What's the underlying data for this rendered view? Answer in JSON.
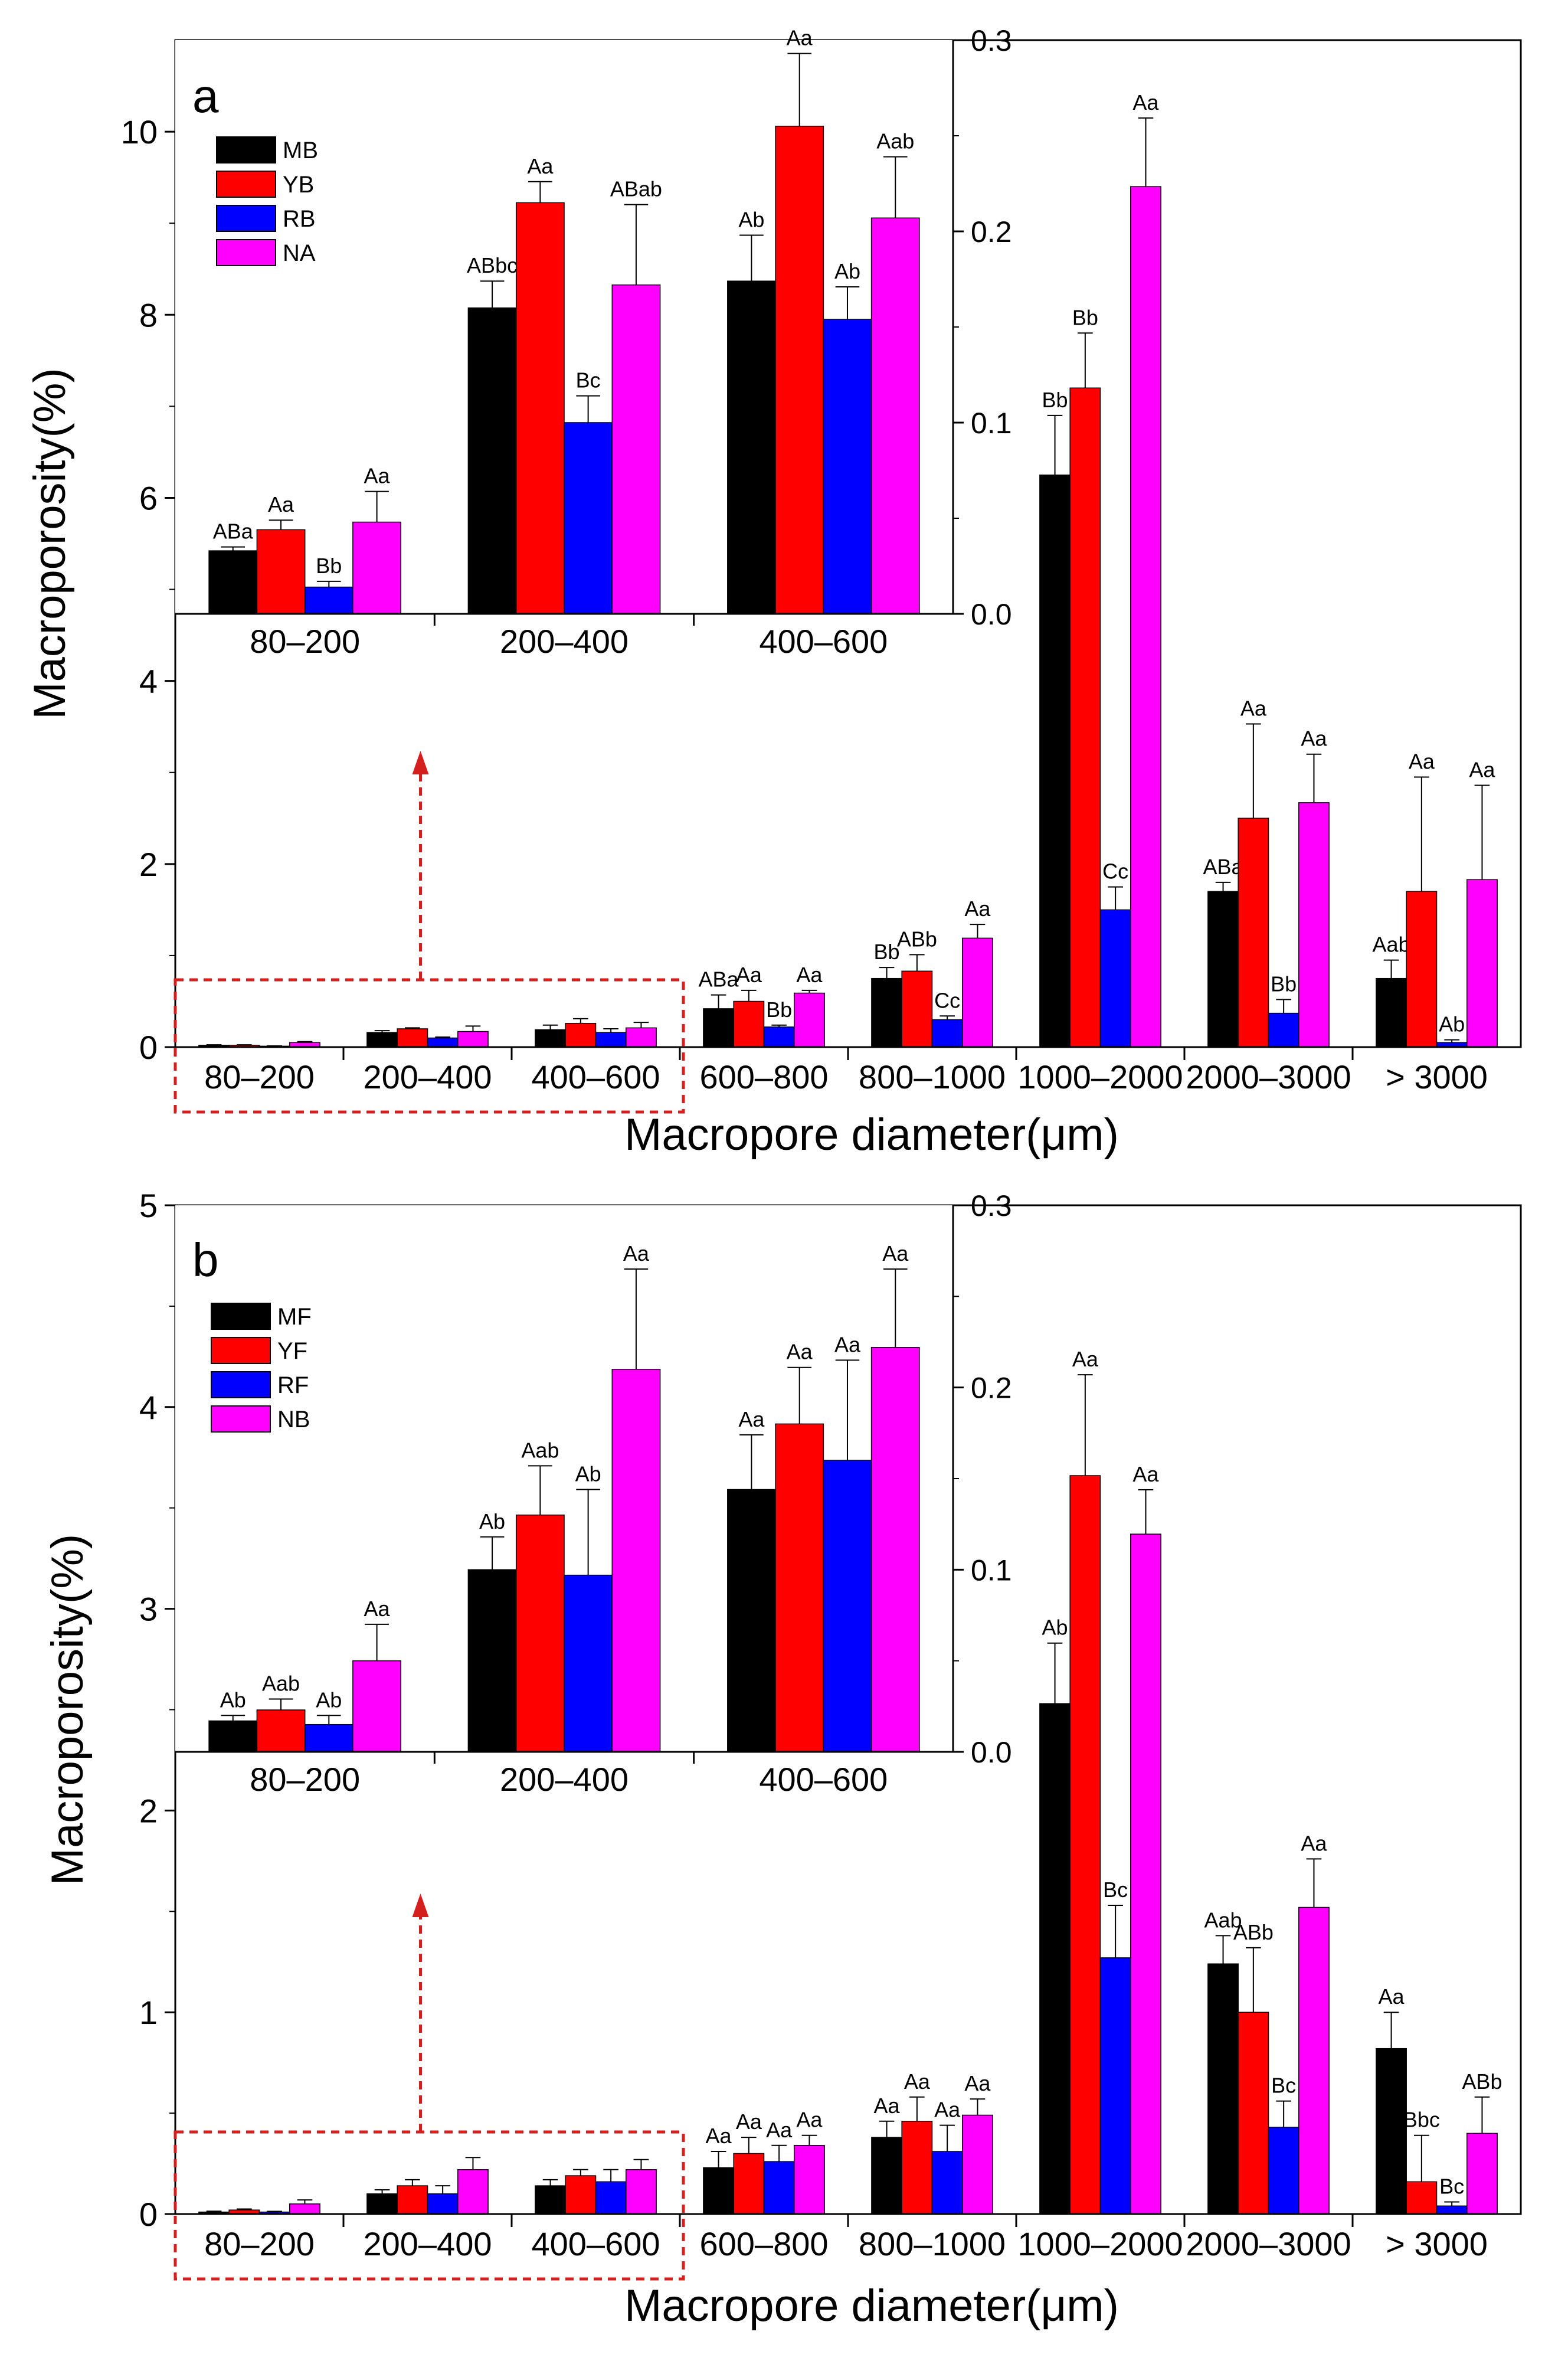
{
  "chart_data": [
    {
      "type": "bar",
      "panel": "a",
      "xlabel": "Macropore diameter(μm)",
      "ylabel": "Macroporosity(%)",
      "ylim": [
        0,
        11
      ],
      "yticks": [
        0,
        2,
        4,
        6,
        8,
        10
      ],
      "categories": [
        "80–200",
        "200–400",
        "400–600",
        "600–800",
        "800–1000",
        "1000–2000",
        "2000–3000",
        "> 3000"
      ],
      "series": [
        {
          "name": "MB",
          "color": "#000000",
          "values": [
            0.02,
            0.16,
            0.19,
            0.42,
            0.75,
            6.25,
            1.7,
            0.75
          ],
          "errors": [
            0.005,
            0.02,
            0.05,
            0.15,
            0.12,
            0.65,
            0.1,
            0.2
          ],
          "labels": [
            "",
            "",
            "",
            "ABa",
            "Bb",
            "Bb",
            "ABa",
            "Aab"
          ]
        },
        {
          "name": "YB",
          "color": "#ff0000",
          "values": [
            0.02,
            0.2,
            0.26,
            0.5,
            0.83,
            7.2,
            2.5,
            1.7
          ],
          "errors": [
            0.005,
            0.01,
            0.05,
            0.12,
            0.18,
            0.6,
            1.03,
            1.25
          ],
          "labels": [
            "",
            "",
            "",
            "Aa",
            "ABb",
            "Bb",
            "Aa",
            "Aa"
          ]
        },
        {
          "name": "RB",
          "color": "#0000ff",
          "values": [
            0.01,
            0.1,
            0.16,
            0.22,
            0.3,
            1.5,
            0.37,
            0.05
          ],
          "errors": [
            0.003,
            0.01,
            0.04,
            0.02,
            0.04,
            0.25,
            0.15,
            0.03
          ],
          "labels": [
            "",
            "",
            "",
            "Bb",
            "Cc",
            "Cc",
            "Bb",
            "Ab"
          ]
        },
        {
          "name": "NA",
          "color": "#ff00ff",
          "values": [
            0.05,
            0.17,
            0.21,
            0.59,
            1.19,
            9.4,
            2.67,
            1.83
          ],
          "errors": [
            0.01,
            0.06,
            0.06,
            0.03,
            0.15,
            0.75,
            0.53,
            1.03
          ],
          "labels": [
            "",
            "",
            "",
            "Aa",
            "Aa",
            "Aa",
            "Aa",
            "Aa"
          ]
        }
      ],
      "inset": {
        "categories": [
          "80–200",
          "200–400",
          "400–600"
        ],
        "ylim": [
          0,
          0.3
        ],
        "yticks": [
          "0.0",
          "0.1",
          "0.2",
          "0.3"
        ],
        "series": [
          {
            "name": "MB",
            "values": [
              0.033,
              0.16,
              0.174
            ],
            "errors": [
              0.002,
              0.014,
              0.024
            ],
            "labels": [
              "ABa",
              "ABbc",
              "Ab"
            ]
          },
          {
            "name": "YB",
            "values": [
              0.044,
              0.215,
              0.255
            ],
            "errors": [
              0.005,
              0.011,
              0.038
            ],
            "labels": [
              "Aa",
              "Aa",
              "Aa"
            ]
          },
          {
            "name": "RB",
            "values": [
              0.014,
              0.1,
              0.154
            ],
            "errors": [
              0.003,
              0.014,
              0.017
            ],
            "labels": [
              "Bb",
              "Bc",
              "Ab"
            ]
          },
          {
            "name": "NA",
            "values": [
              0.048,
              0.172,
              0.207
            ],
            "errors": [
              0.016,
              0.042,
              0.032
            ],
            "labels": [
              "Aa",
              "ABab",
              "Aab"
            ]
          }
        ]
      }
    },
    {
      "type": "bar",
      "panel": "b",
      "xlabel": "Macropore diameter(μm)",
      "ylabel": "Macroporosity(%)",
      "ylim": [
        0,
        5
      ],
      "yticks": [
        0,
        1,
        2,
        3,
        4,
        5
      ],
      "categories": [
        "80–200",
        "200–400",
        "400–600",
        "600–800",
        "800–1000",
        "1000–2000",
        "2000–3000",
        "> 3000"
      ],
      "series": [
        {
          "name": "MF",
          "color": "#000000",
          "values": [
            0.01,
            0.1,
            0.14,
            0.23,
            0.38,
            2.53,
            1.24,
            0.82
          ],
          "errors": [
            0.004,
            0.02,
            0.03,
            0.08,
            0.08,
            0.3,
            0.14,
            0.18
          ],
          "labels": [
            "",
            "",
            "",
            "Aa",
            "Aa",
            "Ab",
            "Aab",
            "Aa"
          ]
        },
        {
          "name": "YF",
          "color": "#ff0000",
          "values": [
            0.02,
            0.14,
            0.19,
            0.3,
            0.46,
            3.66,
            1.0,
            0.16
          ],
          "errors": [
            0.005,
            0.03,
            0.03,
            0.08,
            0.12,
            0.5,
            0.32,
            0.23
          ],
          "labels": [
            "",
            "",
            "",
            "Aa",
            "Aa",
            "Aa",
            "ABb",
            "Bbc"
          ]
        },
        {
          "name": "RF",
          "color": "#0000ff",
          "values": [
            0.01,
            0.1,
            0.16,
            0.26,
            0.31,
            1.27,
            0.43,
            0.04
          ],
          "errors": [
            0.003,
            0.04,
            0.06,
            0.08,
            0.13,
            0.26,
            0.13,
            0.02
          ],
          "labels": [
            "",
            "",
            "",
            "Aa",
            "Aa",
            "Bc",
            "Bc",
            "Bc"
          ]
        },
        {
          "name": "NB",
          "color": "#ff00ff",
          "values": [
            0.05,
            0.22,
            0.22,
            0.34,
            0.49,
            3.37,
            1.52,
            0.4
          ],
          "errors": [
            0.02,
            0.06,
            0.05,
            0.05,
            0.08,
            0.22,
            0.24,
            0.18
          ],
          "labels": [
            "",
            "",
            "",
            "Aa",
            "Aa",
            "Aa",
            "Aa",
            "ABb"
          ]
        }
      ],
      "inset": {
        "categories": [
          "80–200",
          "200–400",
          "400–600"
        ],
        "ylim": [
          0,
          0.3
        ],
        "yticks": [
          "0.0",
          "0.1",
          "0.2",
          "0.3"
        ],
        "series": [
          {
            "name": "MF",
            "values": [
              0.017,
              0.1,
              0.144
            ],
            "errors": [
              0.003,
              0.018,
              0.03
            ],
            "labels": [
              "Ab",
              "Ab",
              "Aa"
            ]
          },
          {
            "name": "YF",
            "values": [
              0.023,
              0.13,
              0.18
            ],
            "errors": [
              0.006,
              0.027,
              0.031
            ],
            "labels": [
              "Aab",
              "Aab",
              "Aa"
            ]
          },
          {
            "name": "RF",
            "values": [
              0.015,
              0.097,
              0.16
            ],
            "errors": [
              0.005,
              0.047,
              0.055
            ],
            "labels": [
              "Ab",
              "Ab",
              "Aa"
            ]
          },
          {
            "name": "NB",
            "values": [
              0.05,
              0.21,
              0.222
            ],
            "errors": [
              0.02,
              0.055,
              0.043
            ],
            "labels": [
              "Aa",
              "Aa",
              "Aa"
            ]
          }
        ]
      }
    }
  ]
}
